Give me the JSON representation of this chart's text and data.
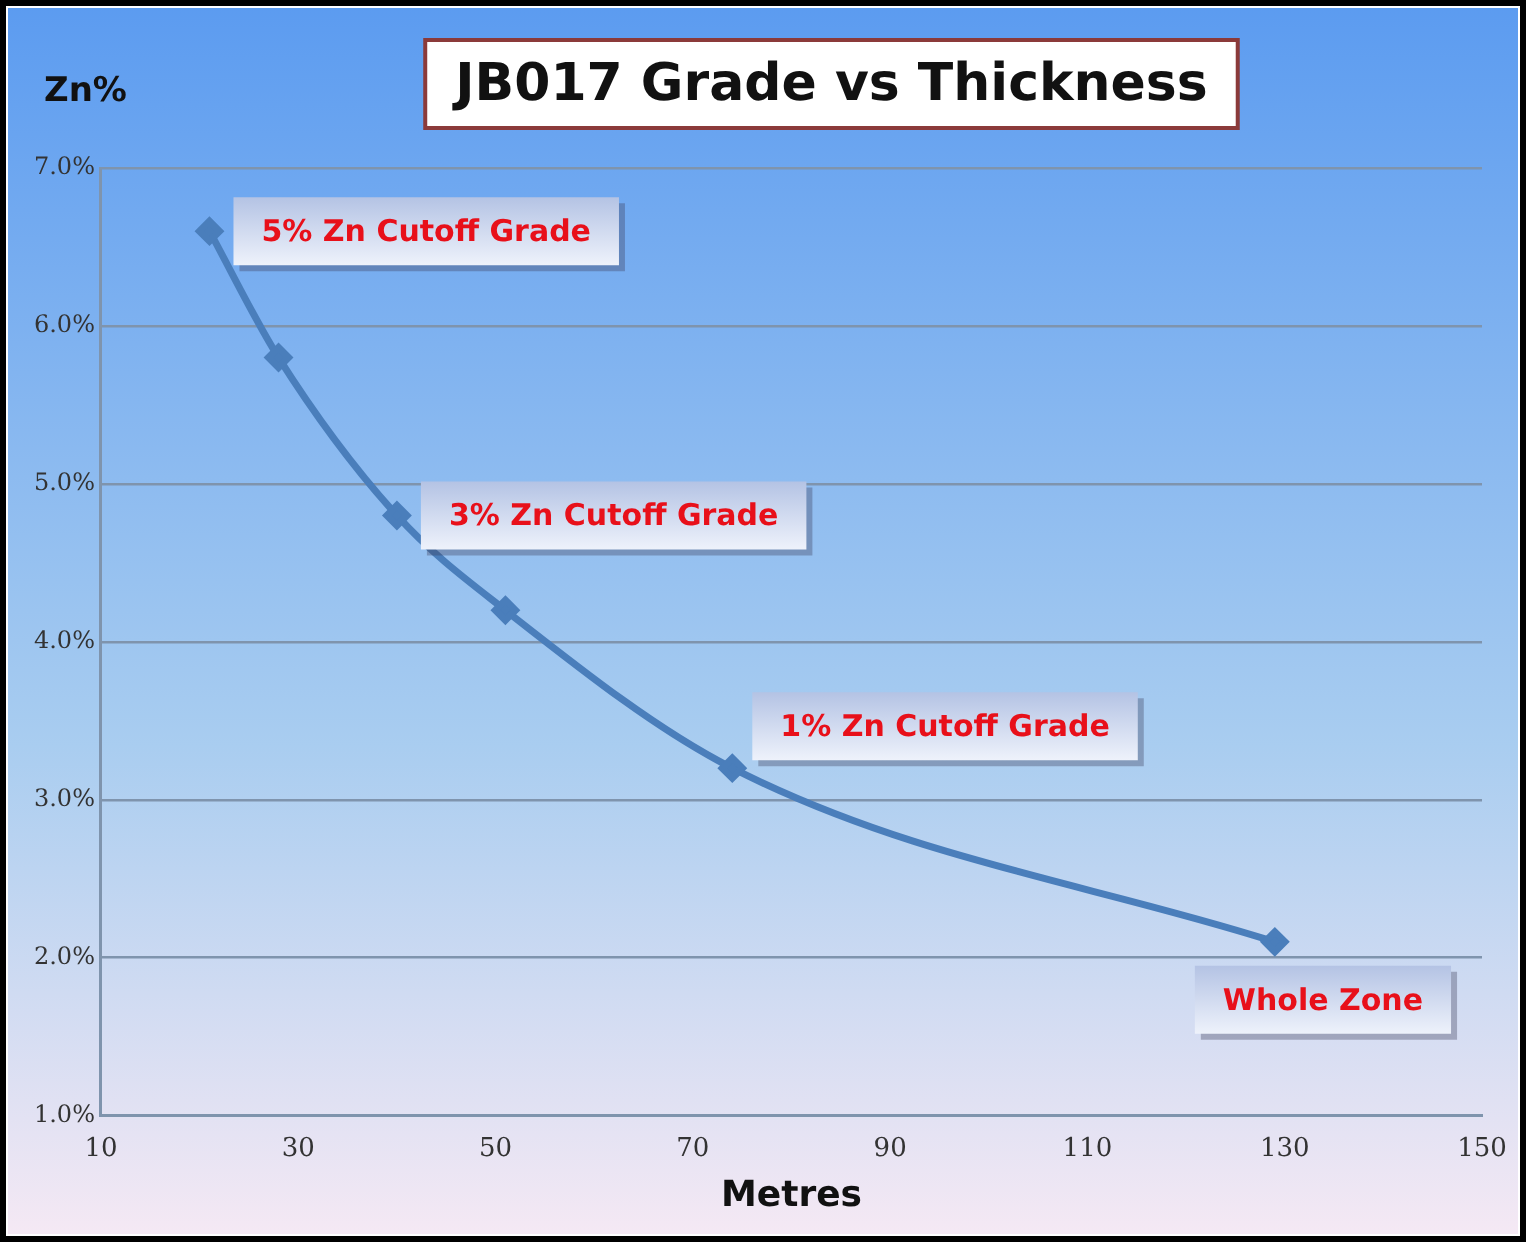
{
  "chart_data": {
    "type": "line",
    "title": "JB017 Grade vs Thickness",
    "xlabel": "Metres",
    "ylabel": "Zn%",
    "x": [
      21,
      28,
      40,
      51,
      74,
      129
    ],
    "series": [
      {
        "color": "#4a7ebb",
        "values": [
          6.6,
          5.8,
          4.8,
          4.2,
          3.2,
          2.1
        ]
      }
    ],
    "xlim": [
      10,
      150
    ],
    "xticks": [
      10,
      30,
      50,
      70,
      90,
      110,
      130,
      150
    ],
    "ylim": [
      1,
      7
    ],
    "yticks": [
      {
        "value": 1,
        "label": "1.0%"
      },
      {
        "value": 2,
        "label": "2.0%"
      },
      {
        "value": 3,
        "label": "3.0%"
      },
      {
        "value": 4,
        "label": "4.0%"
      },
      {
        "value": 5,
        "label": "5.0%"
      },
      {
        "value": 6,
        "label": "6.0%"
      },
      {
        "value": 7,
        "label": "7.0%"
      }
    ],
    "grid": "y",
    "legend": false,
    "marker": "diamond",
    "line_style": "solid",
    "annotations": [
      {
        "text": "5% Zn Cutoff Grade",
        "x": 21,
        "y": 6.6
      },
      {
        "text": "3% Zn Cutoff Grade",
        "x": 40,
        "y": 4.8
      },
      {
        "text": "1% Zn Cutoff Grade",
        "x": 74,
        "y": 3.2
      },
      {
        "text": "Whole Zone",
        "x": 129,
        "y": 2.1
      }
    ]
  }
}
